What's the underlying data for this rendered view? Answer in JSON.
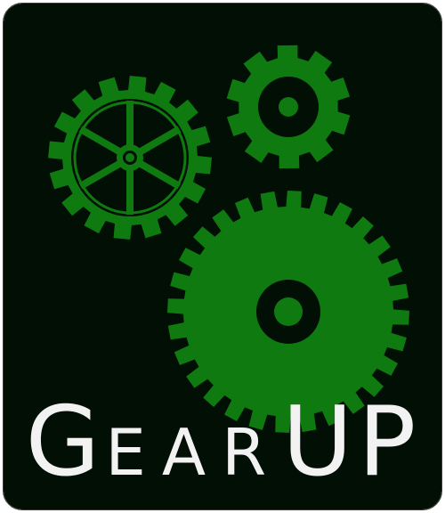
{
  "logo": {
    "text": "GearUP",
    "parts": {
      "g": "G",
      "mid": "EAR",
      "end": "UP"
    }
  },
  "colors": {
    "background": "#010f05",
    "gear": "#0f7a10",
    "gear_hole": "#010f05",
    "text": "#f2f2f2"
  },
  "icons": [
    "spoked-gear-icon",
    "small-gear-icon",
    "large-gear-icon"
  ]
}
